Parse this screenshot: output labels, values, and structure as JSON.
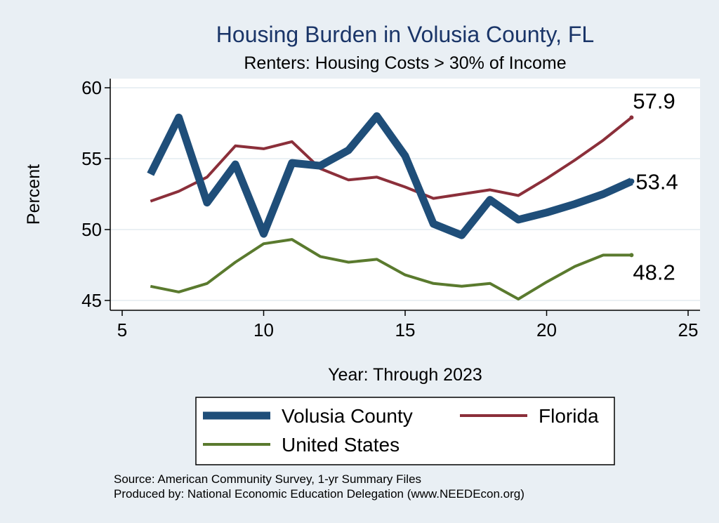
{
  "chart_data": {
    "type": "line",
    "title": "Housing Burden in Volusia County, FL",
    "subtitle": "Renters: Housing Costs > 30% of Income",
    "xlabel": "Year: Through 2023",
    "ylabel": "Percent",
    "xlim": [
      5,
      25
    ],
    "ylim": [
      45,
      60
    ],
    "xticks": [
      5,
      10,
      15,
      20,
      25
    ],
    "yticks": [
      45,
      50,
      55,
      60
    ],
    "grid": true,
    "legend_position": "bottom",
    "series": [
      {
        "name": "Volusia County",
        "color": "#1f4e79",
        "x": [
          6,
          7,
          8,
          9,
          10,
          11,
          12,
          13,
          14,
          15,
          16,
          17,
          18,
          19,
          20,
          21,
          22,
          23
        ],
        "values": [
          53.9,
          57.9,
          51.9,
          54.6,
          49.7,
          54.7,
          54.5,
          55.6,
          58.0,
          55.2,
          50.4,
          49.6,
          52.1,
          50.7,
          51.2,
          51.8,
          52.5,
          53.4
        ],
        "end_label": "53.4"
      },
      {
        "name": "Florida",
        "color": "#8b2f3a",
        "x": [
          6,
          7,
          8,
          9,
          10,
          11,
          12,
          13,
          14,
          15,
          16,
          17,
          18,
          19,
          20,
          21,
          22,
          23
        ],
        "values": [
          52.0,
          52.7,
          53.7,
          55.9,
          55.7,
          56.2,
          54.3,
          53.5,
          53.7,
          53.0,
          52.2,
          52.5,
          52.8,
          52.4,
          53.6,
          54.9,
          56.3,
          57.9
        ],
        "end_label": "57.9"
      },
      {
        "name": "United States",
        "color": "#5a7a2e",
        "x": [
          6,
          7,
          8,
          9,
          10,
          11,
          12,
          13,
          14,
          15,
          16,
          17,
          18,
          19,
          20,
          21,
          22,
          23
        ],
        "values": [
          46.0,
          45.6,
          46.2,
          47.7,
          49.0,
          49.3,
          48.1,
          47.7,
          47.9,
          46.8,
          46.2,
          46.0,
          46.2,
          45.1,
          46.3,
          47.4,
          48.2,
          48.2
        ],
        "end_label": "48.2"
      }
    ]
  },
  "source_lines": [
    "Source: American Community Survey, 1-yr Summary Files",
    "Produced by: National Economic Education Delegation (www.NEEDEcon.org)"
  ]
}
